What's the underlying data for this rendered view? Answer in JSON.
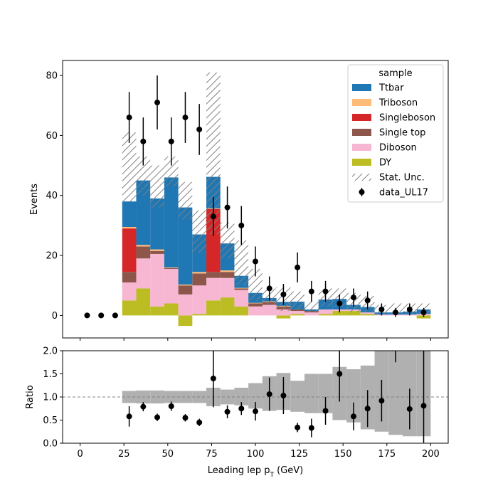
{
  "chart_data": {
    "type": "bar",
    "style": "stacked histogram with data points and ratio subplot",
    "x_unit_label": "Leading lep",
    "x_unit_sub": "T",
    "x_unit_suffix": " (GeV)",
    "main_ylabel": "Events",
    "ratio_ylabel": "Ratio",
    "xlim": [
      -10,
      210
    ],
    "main_ylim": [
      -7.5,
      85
    ],
    "ratio_ylim": [
      0,
      2
    ],
    "x_ticks": [
      0,
      25,
      50,
      75,
      100,
      125,
      150,
      175,
      200
    ],
    "main_y_ticks": [
      0,
      20,
      40,
      60,
      80
    ],
    "ratio_y_ticks": [
      "0.0",
      "0.5",
      "1.0",
      "1.5",
      "2.0"
    ],
    "legend": {
      "title": "sample",
      "placement": "top-right",
      "entries": [
        "Ttbar",
        "Triboson",
        "Singleboson",
        "Single top",
        "Diboson",
        "DY",
        "Stat. Unc.",
        "data_UL17"
      ]
    },
    "colors": {
      "Ttbar": "#1f77b4",
      "Triboson": "#ffbb78",
      "Singleboson": "#d62728",
      "Single top": "#8c564b",
      "Diboson": "#f7b6d2",
      "DY": "#bcbd22"
    },
    "bin_edges": [
      24,
      32,
      40,
      48,
      56,
      64,
      72,
      80,
      88,
      96,
      104,
      112,
      120,
      128,
      136,
      144,
      152,
      160,
      168,
      176,
      184,
      192,
      200
    ],
    "series": [
      {
        "name": "DY",
        "values": [
          5,
          9,
          3,
          4,
          -3.5,
          0.5,
          5,
          6,
          3,
          0,
          0,
          -1,
          0.5,
          0,
          0.5,
          1.5,
          1.5,
          0.5,
          0,
          0,
          0,
          -1
        ]
      },
      {
        "name": "Diboson",
        "values": [
          6,
          10,
          17.5,
          11.5,
          7,
          9.5,
          7.5,
          6.5,
          5.5,
          3,
          3.5,
          2,
          1,
          1,
          1.5,
          0.5,
          0.5,
          0.5,
          0.3,
          0.3,
          0.3,
          0.5
        ]
      },
      {
        "name": "Single top",
        "values": [
          3.5,
          4,
          1,
          0.3,
          3,
          4,
          2,
          2,
          0.5,
          1,
          1,
          1,
          0.5,
          0.5,
          0,
          0,
          0,
          0,
          0,
          0,
          0,
          0
        ]
      },
      {
        "name": "Singleboson",
        "values": [
          14.5,
          0,
          0,
          0,
          0,
          0,
          21,
          0,
          0,
          0,
          0,
          0,
          0,
          0,
          0,
          0,
          0,
          0,
          0,
          0,
          0,
          0
        ]
      },
      {
        "name": "Triboson",
        "values": [
          0.5,
          0.5,
          0.5,
          0.2,
          0.3,
          0.5,
          0.2,
          0.5,
          0.2,
          0.2,
          0.2,
          0.2,
          0,
          0,
          0,
          0,
          0,
          0,
          0,
          0,
          0,
          0
        ]
      },
      {
        "name": "Ttbar",
        "values": [
          8.5,
          21.5,
          17,
          30,
          25.7,
          12.5,
          10.5,
          9,
          4,
          3.3,
          1.1,
          1.3,
          2.6,
          0.5,
          3.3,
          3.5,
          1.5,
          1.8,
          0.7,
          0.7,
          1,
          1.5
        ]
      }
    ],
    "stat_unc_band": {
      "label": "Stat. Unc.",
      "low": [
        38,
        40,
        36,
        43,
        32,
        21,
        27,
        19,
        10,
        5,
        3.5,
        1.5,
        2,
        1,
        3,
        3,
        1,
        1,
        0.5,
        0.5,
        0.5,
        0.5
      ],
      "high": [
        61,
        53,
        50,
        53,
        44.5,
        35,
        81,
        31,
        25,
        15.5,
        9,
        9.5,
        8,
        4.5,
        9,
        9,
        7.5,
        6.5,
        3.5,
        4,
        4,
        4
      ]
    },
    "data": {
      "name": "data_UL17",
      "x": [
        4,
        12,
        20,
        28,
        36,
        44,
        52,
        60,
        68,
        76,
        84,
        92,
        100,
        108,
        116,
        124,
        132,
        140,
        148,
        156,
        164,
        172,
        180,
        188,
        196
      ],
      "y": [
        0,
        0,
        0,
        66,
        58,
        71,
        58,
        66,
        62,
        33,
        36,
        30,
        18,
        9,
        7,
        16,
        8,
        8,
        4,
        6,
        5,
        2,
        1,
        2,
        1
      ],
      "err": [
        0,
        0,
        0,
        8.5,
        8,
        9,
        8,
        8.5,
        8.5,
        6.5,
        7,
        6.5,
        5,
        4,
        3.5,
        5,
        3.5,
        3.5,
        3,
        3,
        3,
        2,
        1.5,
        2,
        1.5
      ]
    },
    "ratio": {
      "reference_line": 1.0,
      "band_low": [
        0.87,
        0.86,
        0.86,
        0.87,
        0.87,
        0.87,
        0.8,
        0.84,
        0.82,
        0.75,
        0.7,
        0.72,
        0.68,
        0.65,
        0.65,
        0.5,
        0.45,
        0.3,
        0.25,
        0.18,
        0.15,
        0.15
      ],
      "band_high": [
        1.13,
        1.14,
        1.14,
        1.13,
        1.13,
        1.13,
        1.2,
        1.16,
        1.2,
        1.3,
        1.45,
        1.52,
        1.35,
        1.5,
        1.5,
        1.65,
        1.6,
        1.68,
        2.0,
        2.0,
        2.0,
        2.0
      ],
      "points": {
        "x": [
          28,
          36,
          44,
          52,
          60,
          68,
          76,
          84,
          92,
          100,
          108,
          116,
          124,
          132,
          140,
          148,
          156,
          164,
          172,
          188,
          196
        ],
        "y": [
          0.58,
          0.79,
          0.56,
          0.8,
          0.55,
          0.45,
          1.4,
          0.68,
          0.75,
          0.69,
          1.06,
          1.03,
          0.34,
          0.33,
          0.7,
          1.5,
          0.58,
          0.75,
          0.92,
          0.74,
          0.81
        ],
        "err_low": [
          0.22,
          0.1,
          0.08,
          0.1,
          0.08,
          0.08,
          0.62,
          0.14,
          0.14,
          0.2,
          0.36,
          0.4,
          0.1,
          0.2,
          0.3,
          0.6,
          0.3,
          0.4,
          0.45,
          0.44,
          0.8
        ],
        "err_high": [
          0.22,
          0.1,
          0.08,
          0.1,
          0.08,
          0.08,
          0.62,
          0.14,
          0.14,
          0.2,
          0.36,
          0.4,
          0.1,
          0.2,
          0.3,
          0.6,
          0.3,
          0.4,
          0.45,
          0.44,
          1.2
        ]
      },
      "offscale_points": {
        "x": [
          180
        ],
        "err_low_from_top": [
          0.25
        ]
      }
    }
  }
}
